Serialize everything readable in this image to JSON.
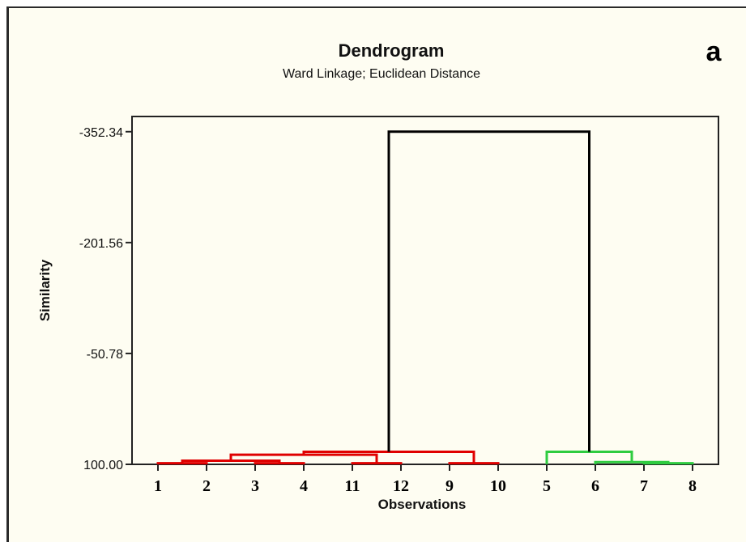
{
  "chart_data": {
    "type": "dendrogram",
    "title": "Dendrogram",
    "subtitle": "Ward Linkage; Euclidean Distance",
    "panel_label": "a",
    "xlabel": "Observations",
    "ylabel": "Similarity",
    "ytick_labels": [
      "-352.34",
      "-201.56",
      "-50.78",
      "100.00"
    ],
    "yticks": [
      -352.34,
      -201.56,
      -50.78,
      100.0
    ],
    "ylim": [
      100.0,
      -373.0
    ],
    "leaf_order": [
      "1",
      "2",
      "3",
      "4",
      "11",
      "12",
      "9",
      "10",
      "5",
      "6",
      "7",
      "8"
    ],
    "clusters": [
      {
        "color": "#e00000",
        "members": [
          "1",
          "2",
          "3",
          "4",
          "11",
          "12",
          "9",
          "10"
        ]
      },
      {
        "color": "#2ecc40",
        "members": [
          "5",
          "6",
          "7",
          "8"
        ]
      }
    ],
    "merges": [
      {
        "id": "m1",
        "left": "1",
        "right": "2",
        "height": 98.5,
        "color": "#e00000"
      },
      {
        "id": "m2",
        "left": "3",
        "right": "4",
        "height": 98.5,
        "color": "#e00000"
      },
      {
        "id": "m3",
        "left": "11",
        "right": "12",
        "height": 98.5,
        "color": "#e00000"
      },
      {
        "id": "m4",
        "left": "9",
        "right": "10",
        "height": 98.5,
        "color": "#e00000"
      },
      {
        "id": "m5",
        "left": "7",
        "right": "8",
        "height": 98.5,
        "color": "#2ecc40"
      },
      {
        "id": "m6",
        "left": "m1",
        "right": "m2",
        "height": 95.0,
        "color": "#e00000"
      },
      {
        "id": "m7",
        "left": "6",
        "right": "m5",
        "height": 97.0,
        "color": "#2ecc40"
      },
      {
        "id": "m8",
        "left": "m6",
        "right": "m3",
        "height": 87.0,
        "color": "#e00000"
      },
      {
        "id": "m9",
        "left": "m8",
        "right": "m4",
        "height": 83.0,
        "color": "#e00000"
      },
      {
        "id": "m10",
        "left": "5",
        "right": "m7",
        "height": 83.0,
        "color": "#2ecc40"
      },
      {
        "id": "m11",
        "left": "m9",
        "right": "m10",
        "height": -352.34,
        "color": "#000000"
      }
    ]
  }
}
